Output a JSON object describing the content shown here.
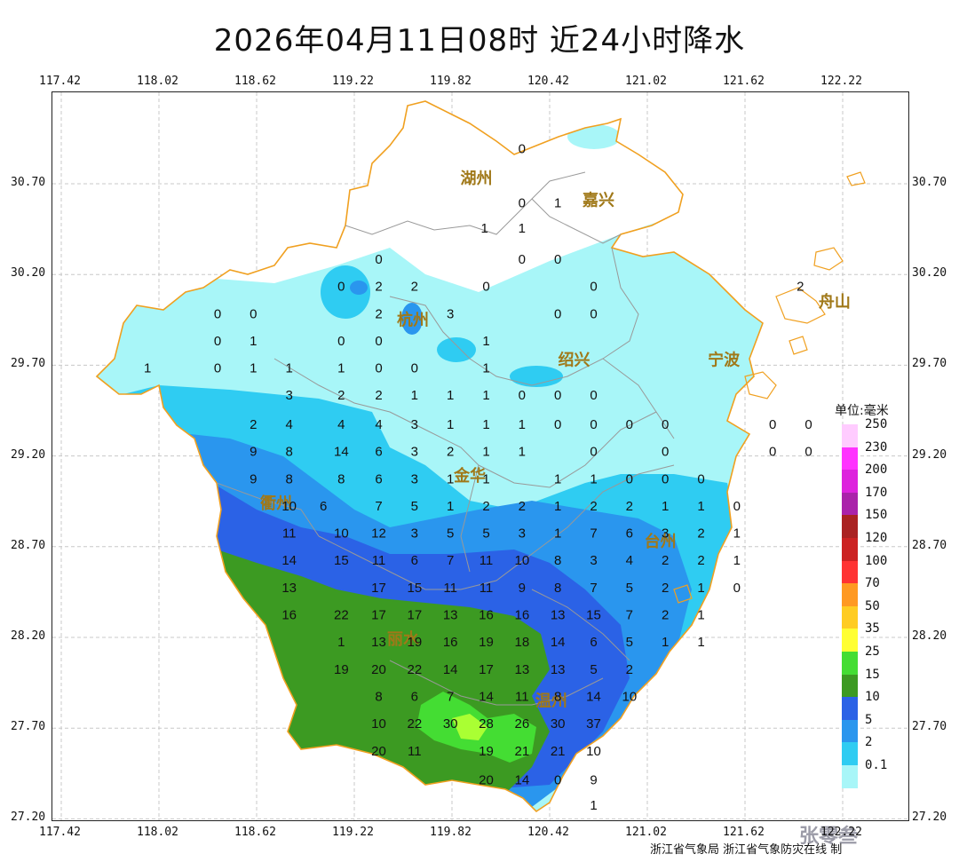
{
  "title": "2026年04月11日08时  近24小时降水",
  "lon_ticks": [
    "117.42",
    "118.02",
    "118.62",
    "119.22",
    "119.82",
    "120.42",
    "121.02",
    "121.62",
    "122.22"
  ],
  "lat_ticks": [
    "30.70",
    "30.20",
    "29.70",
    "29.20",
    "28.70",
    "28.20",
    "27.70",
    "27.20"
  ],
  "legend": {
    "title": "单位:毫米",
    "levels": [
      {
        "label": "250",
        "color": "#ffccff"
      },
      {
        "label": "230",
        "color": "#ff33ff"
      },
      {
        "label": "200",
        "color": "#dd22dd"
      },
      {
        "label": "170",
        "color": "#aa22aa"
      },
      {
        "label": "150",
        "color": "#aa2222"
      },
      {
        "label": "120",
        "color": "#cc2222"
      },
      {
        "label": "100",
        "color": "#ff3333"
      },
      {
        "label": "70",
        "color": "#ff9922"
      },
      {
        "label": "50",
        "color": "#ffcc22"
      },
      {
        "label": "35",
        "color": "#ffff33"
      },
      {
        "label": "25",
        "color": "#44dd33"
      },
      {
        "label": "15",
        "color": "#3c9a22"
      },
      {
        "label": "10",
        "color": "#2b62e6"
      },
      {
        "label": "5",
        "color": "#2a96ee"
      },
      {
        "label": "2",
        "color": "#2fccf2"
      },
      {
        "label": "0.1",
        "color": "#a8f6f8"
      }
    ]
  },
  "cities": [
    {
      "name": "湖州",
      "lon": 119.97,
      "lat": 30.7
    },
    {
      "name": "嘉兴",
      "lon": 120.72,
      "lat": 30.58
    },
    {
      "name": "杭州",
      "lon": 119.58,
      "lat": 29.92
    },
    {
      "name": "绍兴",
      "lon": 120.57,
      "lat": 29.7
    },
    {
      "name": "宁波",
      "lon": 121.49,
      "lat": 29.7
    },
    {
      "name": "舟山",
      "lon": 122.17,
      "lat": 30.02
    },
    {
      "name": "衢州",
      "lon": 118.74,
      "lat": 28.91
    },
    {
      "name": "金华",
      "lon": 119.93,
      "lat": 29.06
    },
    {
      "name": "台州",
      "lon": 121.1,
      "lat": 28.7
    },
    {
      "name": "丽水",
      "lon": 119.52,
      "lat": 28.16
    },
    {
      "name": "温州",
      "lon": 120.43,
      "lat": 27.82
    }
  ],
  "chart_data": {
    "type": "heatmap",
    "title": "2026年04月11日08时  近24小时降水",
    "unit": "毫米",
    "xlim": [
      117.42,
      122.22
    ],
    "ylim": [
      27.2,
      30.7
    ],
    "stations": [
      {
        "v": "0",
        "lon": 120.25,
        "lat": 30.87
      },
      {
        "v": "0",
        "lon": 120.25,
        "lat": 30.57
      },
      {
        "v": "1",
        "lon": 120.47,
        "lat": 30.57
      },
      {
        "v": "1",
        "lon": 120.02,
        "lat": 30.43
      },
      {
        "v": "1",
        "lon": 120.25,
        "lat": 30.43
      },
      {
        "v": "0",
        "lon": 120.25,
        "lat": 30.26
      },
      {
        "v": "0",
        "lon": 120.47,
        "lat": 30.26
      },
      {
        "v": "0",
        "lon": 119.37,
        "lat": 30.26
      },
      {
        "v": "0",
        "lon": 119.14,
        "lat": 30.11
      },
      {
        "v": "2",
        "lon": 119.37,
        "lat": 30.11
      },
      {
        "v": "2",
        "lon": 119.59,
        "lat": 30.11
      },
      {
        "v": "0",
        "lon": 120.03,
        "lat": 30.11
      },
      {
        "v": "0",
        "lon": 120.69,
        "lat": 30.11
      },
      {
        "v": "2",
        "lon": 121.96,
        "lat": 30.11
      },
      {
        "v": "0",
        "lon": 118.38,
        "lat": 29.96
      },
      {
        "v": "0",
        "lon": 118.6,
        "lat": 29.96
      },
      {
        "v": "2",
        "lon": 119.37,
        "lat": 29.96
      },
      {
        "v": "3",
        "lon": 119.81,
        "lat": 29.96
      },
      {
        "v": "0",
        "lon": 120.47,
        "lat": 29.96
      },
      {
        "v": "0",
        "lon": 120.69,
        "lat": 29.96
      },
      {
        "v": "0",
        "lon": 118.38,
        "lat": 29.81
      },
      {
        "v": "1",
        "lon": 118.6,
        "lat": 29.81
      },
      {
        "v": "0",
        "lon": 119.14,
        "lat": 29.81
      },
      {
        "v": "0",
        "lon": 119.37,
        "lat": 29.81
      },
      {
        "v": "1",
        "lon": 120.03,
        "lat": 29.81
      },
      {
        "v": "1",
        "lon": 117.95,
        "lat": 29.66
      },
      {
        "v": "0",
        "lon": 118.38,
        "lat": 29.66
      },
      {
        "v": "1",
        "lon": 118.6,
        "lat": 29.66
      },
      {
        "v": "1",
        "lon": 118.82,
        "lat": 29.66
      },
      {
        "v": "1",
        "lon": 119.14,
        "lat": 29.66
      },
      {
        "v": "0",
        "lon": 119.37,
        "lat": 29.66
      },
      {
        "v": "0",
        "lon": 119.59,
        "lat": 29.66
      },
      {
        "v": "1",
        "lon": 120.03,
        "lat": 29.66
      },
      {
        "v": "3",
        "lon": 118.82,
        "lat": 29.51
      },
      {
        "v": "2",
        "lon": 119.14,
        "lat": 29.51
      },
      {
        "v": "2",
        "lon": 119.37,
        "lat": 29.51
      },
      {
        "v": "1",
        "lon": 119.59,
        "lat": 29.51
      },
      {
        "v": "1",
        "lon": 119.81,
        "lat": 29.51
      },
      {
        "v": "1",
        "lon": 120.03,
        "lat": 29.51
      },
      {
        "v": "0",
        "lon": 120.25,
        "lat": 29.51
      },
      {
        "v": "0",
        "lon": 120.47,
        "lat": 29.51
      },
      {
        "v": "0",
        "lon": 120.69,
        "lat": 29.51
      },
      {
        "v": "2",
        "lon": 118.6,
        "lat": 29.35
      },
      {
        "v": "4",
        "lon": 118.82,
        "lat": 29.35
      },
      {
        "v": "4",
        "lon": 119.14,
        "lat": 29.35
      },
      {
        "v": "4",
        "lon": 119.37,
        "lat": 29.35
      },
      {
        "v": "3",
        "lon": 119.59,
        "lat": 29.35
      },
      {
        "v": "1",
        "lon": 119.81,
        "lat": 29.35
      },
      {
        "v": "1",
        "lon": 120.03,
        "lat": 29.35
      },
      {
        "v": "1",
        "lon": 120.25,
        "lat": 29.35
      },
      {
        "v": "0",
        "lon": 120.47,
        "lat": 29.35
      },
      {
        "v": "0",
        "lon": 120.69,
        "lat": 29.35
      },
      {
        "v": "0",
        "lon": 120.91,
        "lat": 29.35
      },
      {
        "v": "0",
        "lon": 121.13,
        "lat": 29.35
      },
      {
        "v": "0",
        "lon": 121.79,
        "lat": 29.35
      },
      {
        "v": "0",
        "lon": 122.01,
        "lat": 29.35
      },
      {
        "v": "9",
        "lon": 118.6,
        "lat": 29.2
      },
      {
        "v": "8",
        "lon": 118.82,
        "lat": 29.2
      },
      {
        "v": "14",
        "lon": 119.14,
        "lat": 29.2
      },
      {
        "v": "6",
        "lon": 119.37,
        "lat": 29.2
      },
      {
        "v": "3",
        "lon": 119.59,
        "lat": 29.2
      },
      {
        "v": "2",
        "lon": 119.81,
        "lat": 29.2
      },
      {
        "v": "1",
        "lon": 120.03,
        "lat": 29.2
      },
      {
        "v": "1",
        "lon": 120.25,
        "lat": 29.2
      },
      {
        "v": "0",
        "lon": 120.69,
        "lat": 29.2
      },
      {
        "v": "0",
        "lon": 121.13,
        "lat": 29.2
      },
      {
        "v": "0",
        "lon": 121.79,
        "lat": 29.2
      },
      {
        "v": "0",
        "lon": 122.01,
        "lat": 29.2
      },
      {
        "v": "9",
        "lon": 118.6,
        "lat": 29.05
      },
      {
        "v": "8",
        "lon": 118.82,
        "lat": 29.05
      },
      {
        "v": "8",
        "lon": 119.14,
        "lat": 29.05
      },
      {
        "v": "6",
        "lon": 119.37,
        "lat": 29.05
      },
      {
        "v": "3",
        "lon": 119.59,
        "lat": 29.05
      },
      {
        "v": "1",
        "lon": 119.81,
        "lat": 29.05
      },
      {
        "v": "1",
        "lon": 120.03,
        "lat": 29.05
      },
      {
        "v": "1",
        "lon": 120.47,
        "lat": 29.05
      },
      {
        "v": "1",
        "lon": 120.69,
        "lat": 29.05
      },
      {
        "v": "0",
        "lon": 120.91,
        "lat": 29.05
      },
      {
        "v": "0",
        "lon": 121.13,
        "lat": 29.05
      },
      {
        "v": "0",
        "lon": 121.35,
        "lat": 29.05
      },
      {
        "v": "10",
        "lon": 118.82,
        "lat": 28.9
      },
      {
        "v": "6",
        "lon": 119.03,
        "lat": 28.9
      },
      {
        "v": "7",
        "lon": 119.37,
        "lat": 28.9
      },
      {
        "v": "5",
        "lon": 119.59,
        "lat": 28.9
      },
      {
        "v": "1",
        "lon": 119.81,
        "lat": 28.9
      },
      {
        "v": "2",
        "lon": 120.03,
        "lat": 28.9
      },
      {
        "v": "2",
        "lon": 120.25,
        "lat": 28.9
      },
      {
        "v": "1",
        "lon": 120.47,
        "lat": 28.9
      },
      {
        "v": "2",
        "lon": 120.69,
        "lat": 28.9
      },
      {
        "v": "2",
        "lon": 120.91,
        "lat": 28.9
      },
      {
        "v": "1",
        "lon": 121.13,
        "lat": 28.9
      },
      {
        "v": "1",
        "lon": 121.35,
        "lat": 28.9
      },
      {
        "v": "0",
        "lon": 121.57,
        "lat": 28.9
      },
      {
        "v": "11",
        "lon": 118.82,
        "lat": 28.75
      },
      {
        "v": "10",
        "lon": 119.14,
        "lat": 28.75
      },
      {
        "v": "12",
        "lon": 119.37,
        "lat": 28.75
      },
      {
        "v": "3",
        "lon": 119.59,
        "lat": 28.75
      },
      {
        "v": "5",
        "lon": 119.81,
        "lat": 28.75
      },
      {
        "v": "5",
        "lon": 120.03,
        "lat": 28.75
      },
      {
        "v": "3",
        "lon": 120.25,
        "lat": 28.75
      },
      {
        "v": "1",
        "lon": 120.47,
        "lat": 28.75
      },
      {
        "v": "7",
        "lon": 120.69,
        "lat": 28.75
      },
      {
        "v": "6",
        "lon": 120.91,
        "lat": 28.75
      },
      {
        "v": "3",
        "lon": 121.13,
        "lat": 28.75
      },
      {
        "v": "2",
        "lon": 121.35,
        "lat": 28.75
      },
      {
        "v": "1",
        "lon": 121.57,
        "lat": 28.75
      },
      {
        "v": "14",
        "lon": 118.82,
        "lat": 28.6
      },
      {
        "v": "15",
        "lon": 119.14,
        "lat": 28.6
      },
      {
        "v": "11",
        "lon": 119.37,
        "lat": 28.6
      },
      {
        "v": "6",
        "lon": 119.59,
        "lat": 28.6
      },
      {
        "v": "7",
        "lon": 119.81,
        "lat": 28.6
      },
      {
        "v": "11",
        "lon": 120.03,
        "lat": 28.6
      },
      {
        "v": "10",
        "lon": 120.25,
        "lat": 28.6
      },
      {
        "v": "8",
        "lon": 120.47,
        "lat": 28.6
      },
      {
        "v": "3",
        "lon": 120.69,
        "lat": 28.6
      },
      {
        "v": "4",
        "lon": 120.91,
        "lat": 28.6
      },
      {
        "v": "2",
        "lon": 121.13,
        "lat": 28.6
      },
      {
        "v": "2",
        "lon": 121.35,
        "lat": 28.6
      },
      {
        "v": "1",
        "lon": 121.57,
        "lat": 28.6
      },
      {
        "v": "13",
        "lon": 118.82,
        "lat": 28.45
      },
      {
        "v": "17",
        "lon": 119.37,
        "lat": 28.45
      },
      {
        "v": "15",
        "lon": 119.59,
        "lat": 28.45
      },
      {
        "v": "11",
        "lon": 119.81,
        "lat": 28.45
      },
      {
        "v": "11",
        "lon": 120.03,
        "lat": 28.45
      },
      {
        "v": "9",
        "lon": 120.25,
        "lat": 28.45
      },
      {
        "v": "8",
        "lon": 120.47,
        "lat": 28.45
      },
      {
        "v": "7",
        "lon": 120.69,
        "lat": 28.45
      },
      {
        "v": "5",
        "lon": 120.91,
        "lat": 28.45
      },
      {
        "v": "2",
        "lon": 121.13,
        "lat": 28.45
      },
      {
        "v": "1",
        "lon": 121.35,
        "lat": 28.45
      },
      {
        "v": "0",
        "lon": 121.57,
        "lat": 28.45
      },
      {
        "v": "16",
        "lon": 118.82,
        "lat": 28.3
      },
      {
        "v": "22",
        "lon": 119.14,
        "lat": 28.3
      },
      {
        "v": "17",
        "lon": 119.37,
        "lat": 28.3
      },
      {
        "v": "17",
        "lon": 119.59,
        "lat": 28.3
      },
      {
        "v": "13",
        "lon": 119.81,
        "lat": 28.3
      },
      {
        "v": "16",
        "lon": 120.03,
        "lat": 28.3
      },
      {
        "v": "16",
        "lon": 120.25,
        "lat": 28.3
      },
      {
        "v": "13",
        "lon": 120.47,
        "lat": 28.3
      },
      {
        "v": "15",
        "lon": 120.69,
        "lat": 28.3
      },
      {
        "v": "7",
        "lon": 120.91,
        "lat": 28.3
      },
      {
        "v": "2",
        "lon": 121.13,
        "lat": 28.3
      },
      {
        "v": "1",
        "lon": 121.35,
        "lat": 28.3
      },
      {
        "v": "1",
        "lon": 119.14,
        "lat": 28.15
      },
      {
        "v": "13",
        "lon": 119.37,
        "lat": 28.15
      },
      {
        "v": "19",
        "lon": 119.59,
        "lat": 28.15
      },
      {
        "v": "16",
        "lon": 119.81,
        "lat": 28.15
      },
      {
        "v": "19",
        "lon": 120.03,
        "lat": 28.15
      },
      {
        "v": "18",
        "lon": 120.25,
        "lat": 28.15
      },
      {
        "v": "14",
        "lon": 120.47,
        "lat": 28.15
      },
      {
        "v": "6",
        "lon": 120.69,
        "lat": 28.15
      },
      {
        "v": "5",
        "lon": 120.91,
        "lat": 28.15
      },
      {
        "v": "1",
        "lon": 121.13,
        "lat": 28.15
      },
      {
        "v": "1",
        "lon": 121.35,
        "lat": 28.15
      },
      {
        "v": "19",
        "lon": 119.14,
        "lat": 28.0
      },
      {
        "v": "20",
        "lon": 119.37,
        "lat": 28.0
      },
      {
        "v": "22",
        "lon": 119.59,
        "lat": 28.0
      },
      {
        "v": "14",
        "lon": 119.81,
        "lat": 28.0
      },
      {
        "v": "17",
        "lon": 120.03,
        "lat": 28.0
      },
      {
        "v": "13",
        "lon": 120.25,
        "lat": 28.0
      },
      {
        "v": "13",
        "lon": 120.47,
        "lat": 28.0
      },
      {
        "v": "5",
        "lon": 120.69,
        "lat": 28.0
      },
      {
        "v": "2",
        "lon": 120.91,
        "lat": 28.0
      },
      {
        "v": "8",
        "lon": 119.37,
        "lat": 27.85
      },
      {
        "v": "6",
        "lon": 119.59,
        "lat": 27.85
      },
      {
        "v": "7",
        "lon": 119.81,
        "lat": 27.85
      },
      {
        "v": "14",
        "lon": 120.03,
        "lat": 27.85
      },
      {
        "v": "11",
        "lon": 120.25,
        "lat": 27.85
      },
      {
        "v": "8",
        "lon": 120.47,
        "lat": 27.85
      },
      {
        "v": "14",
        "lon": 120.69,
        "lat": 27.85
      },
      {
        "v": "10",
        "lon": 120.91,
        "lat": 27.85
      },
      {
        "v": "10",
        "lon": 119.37,
        "lat": 27.7
      },
      {
        "v": "22",
        "lon": 119.59,
        "lat": 27.7
      },
      {
        "v": "30",
        "lon": 119.81,
        "lat": 27.7
      },
      {
        "v": "28",
        "lon": 120.03,
        "lat": 27.7
      },
      {
        "v": "26",
        "lon": 120.25,
        "lat": 27.7
      },
      {
        "v": "30",
        "lon": 120.47,
        "lat": 27.7
      },
      {
        "v": "37",
        "lon": 120.69,
        "lat": 27.7
      },
      {
        "v": "20",
        "lon": 119.37,
        "lat": 27.55
      },
      {
        "v": "11",
        "lon": 119.59,
        "lat": 27.55
      },
      {
        "v": "19",
        "lon": 120.03,
        "lat": 27.55
      },
      {
        "v": "21",
        "lon": 120.25,
        "lat": 27.55
      },
      {
        "v": "21",
        "lon": 120.47,
        "lat": 27.55
      },
      {
        "v": "10",
        "lon": 120.69,
        "lat": 27.55
      },
      {
        "v": "20",
        "lon": 120.03,
        "lat": 27.39
      },
      {
        "v": "14",
        "lon": 120.25,
        "lat": 27.39
      },
      {
        "v": "0",
        "lon": 120.47,
        "lat": 27.39
      },
      {
        "v": "9",
        "lon": 120.69,
        "lat": 27.39
      },
      {
        "v": "1",
        "lon": 120.69,
        "lat": 27.25
      }
    ]
  },
  "footer": "浙江省气象局 浙江省气象防灾在线 制",
  "watermark": "张零叁"
}
